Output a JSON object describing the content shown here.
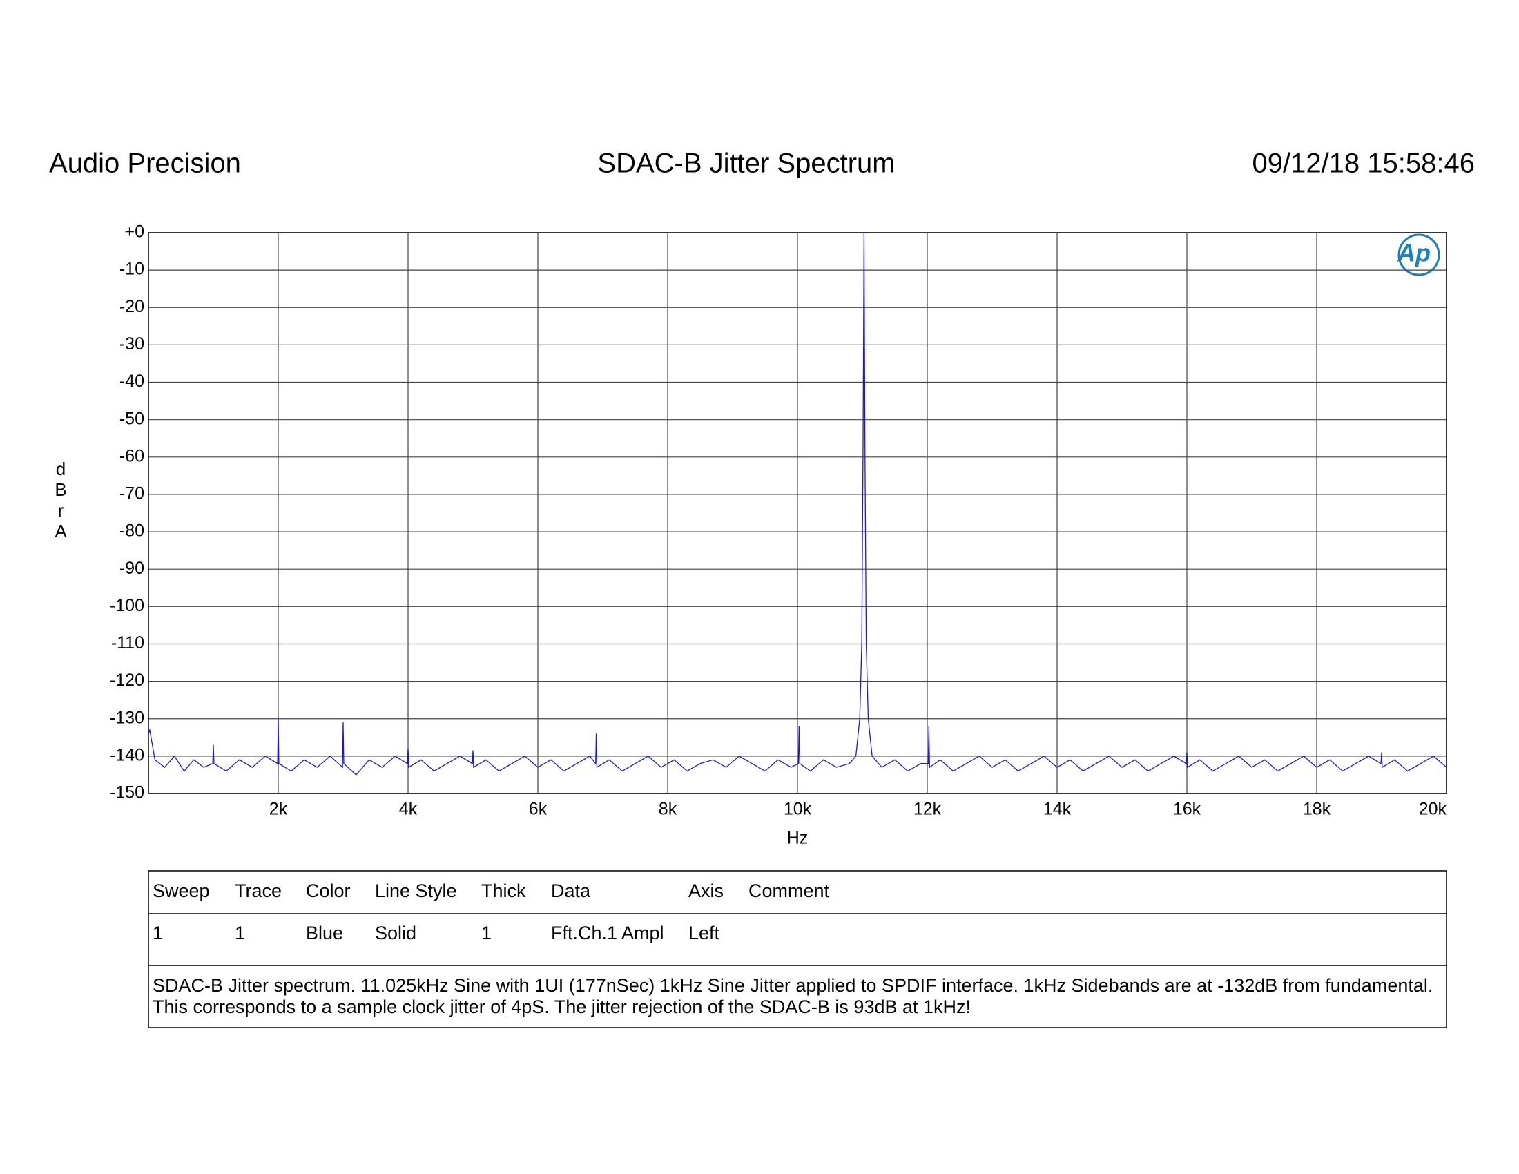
{
  "header": {
    "brand": "Audio Precision",
    "timestamp": "09/12/18 15:58:46"
  },
  "chart_data": {
    "type": "line",
    "title": "SDAC-B Jitter Spectrum",
    "xlabel": "Hz",
    "ylabel": "dBr A",
    "logo": "Ap",
    "color": "#1a1acc",
    "grid": true,
    "xlim": [
      0,
      20000
    ],
    "ylim": [
      -150,
      0
    ],
    "xticks": [
      {
        "value": 2000,
        "label": "2k"
      },
      {
        "value": 4000,
        "label": "4k"
      },
      {
        "value": 6000,
        "label": "6k"
      },
      {
        "value": 8000,
        "label": "8k"
      },
      {
        "value": 10000,
        "label": "10k"
      },
      {
        "value": 12000,
        "label": "12k"
      },
      {
        "value": 14000,
        "label": "14k"
      },
      {
        "value": 16000,
        "label": "16k"
      },
      {
        "value": 18000,
        "label": "18k"
      },
      {
        "value": 20000,
        "label": "20k"
      }
    ],
    "yticks": [
      {
        "value": 0,
        "label": "+0"
      },
      -10,
      -20,
      -30,
      -40,
      -50,
      -60,
      -70,
      -80,
      -90,
      -100,
      -110,
      -120,
      -130,
      -140,
      -150
    ],
    "x": [
      0,
      20,
      100,
      250,
      400,
      550,
      700,
      850,
      990,
      1000,
      1010,
      1200,
      1400,
      1600,
      1800,
      1990,
      2000,
      2010,
      2200,
      2400,
      2600,
      2800,
      2990,
      3000,
      3010,
      3200,
      3400,
      3600,
      3800,
      3990,
      4000,
      4010,
      4200,
      4400,
      4600,
      4800,
      4990,
      5000,
      5010,
      5200,
      5400,
      5600,
      5800,
      6000,
      6200,
      6400,
      6600,
      6800,
      6890,
      6900,
      6910,
      7100,
      7300,
      7500,
      7700,
      7900,
      8100,
      8300,
      8500,
      8700,
      8900,
      9100,
      9300,
      9500,
      9700,
      9900,
      10015,
      10025,
      10035,
      10200,
      10400,
      10600,
      10800,
      10900,
      10960,
      10990,
      11010,
      11025,
      11040,
      11060,
      11090,
      11150,
      11300,
      11500,
      11700,
      11900,
      12015,
      12025,
      12035,
      12200,
      12400,
      12600,
      12800,
      13000,
      13200,
      13400,
      13600,
      13800,
      14000,
      14200,
      14400,
      14600,
      14800,
      15000,
      15200,
      15400,
      15600,
      15800,
      15990,
      16000,
      16010,
      16200,
      16400,
      16600,
      16800,
      17000,
      17200,
      17400,
      17600,
      17800,
      18000,
      18200,
      18400,
      18600,
      18800,
      18990,
      19000,
      19010,
      19200,
      19400,
      19600,
      19800,
      20000
    ],
    "values": [
      -134,
      -133,
      -141,
      -143,
      -140,
      -144,
      -141,
      -143,
      -142,
      -137,
      -142,
      -144,
      -141,
      -143,
      -140,
      -142,
      -130,
      -142,
      -144,
      -141,
      -143,
      -140,
      -143,
      -131,
      -142,
      -145,
      -141,
      -143,
      -140,
      -142,
      -138,
      -143,
      -141,
      -144,
      -142,
      -140,
      -142,
      -138.5,
      -143,
      -141,
      -144,
      -142,
      -140,
      -143,
      -141,
      -144,
      -142,
      -140,
      -142,
      -134,
      -143,
      -141,
      -144,
      -142,
      -140,
      -143,
      -141,
      -144,
      -142,
      -141,
      -143,
      -140,
      -142,
      -144,
      -141,
      -143,
      -142,
      -132,
      -142,
      -144,
      -141,
      -143,
      -142,
      -140,
      -130,
      -110,
      -60,
      0,
      -60,
      -110,
      -130,
      -140,
      -143,
      -141,
      -144,
      -142,
      -142,
      -132,
      -143,
      -141,
      -144,
      -142,
      -140,
      -143,
      -141,
      -144,
      -142,
      -140,
      -143,
      -141,
      -144,
      -142,
      -140,
      -143,
      -141,
      -144,
      -142,
      -140,
      -142,
      -139,
      -143,
      -141,
      -144,
      -142,
      -140,
      -143,
      -141,
      -144,
      -142,
      -140,
      -143,
      -141,
      -144,
      -142,
      -140,
      -142,
      -139,
      -143,
      -141,
      -144,
      -142,
      -140,
      -143
    ]
  },
  "table": {
    "columns": [
      "Sweep",
      "Trace",
      "Color",
      "Line Style",
      "Thick",
      "Data",
      "Axis",
      "Comment"
    ],
    "rows": [
      [
        "1",
        "1",
        "Blue",
        "Solid",
        "1",
        "Fft.Ch.1 Ampl",
        "Left"
      ]
    ],
    "note": [
      "SDAC-B Jitter spectrum.  11.025kHz Sine with 1UI (177nSec) 1kHz Sine Jitter applied to SPDIF interface.  1kHz Sidebands are at -132dB from fundamental.",
      "This corresponds to a sample clock jitter of 4pS.  The jitter rejection of the SDAC-B is 93dB at 1kHz!"
    ]
  }
}
